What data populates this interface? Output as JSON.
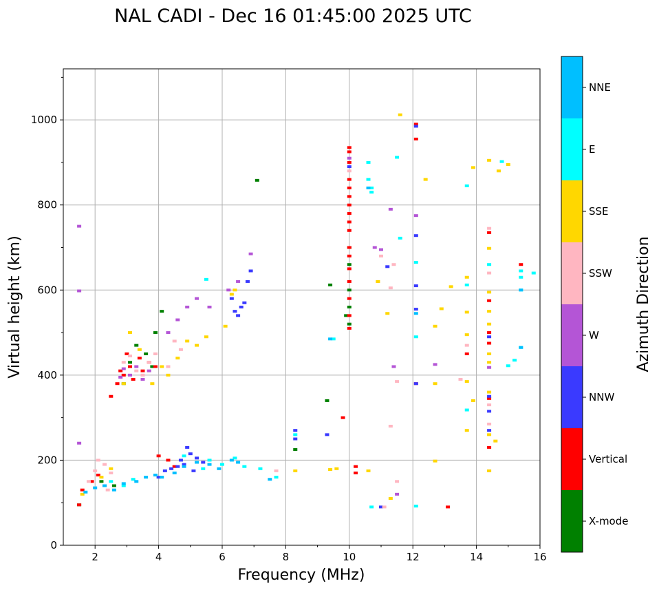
{
  "chart_data": {
    "type": "scatter",
    "title": "NAL CADI - Dec 16 01:45:00 2025 UTC",
    "xlabel": "Frequency (MHz)",
    "ylabel": "Virtual height (km)",
    "xlim": [
      1,
      16
    ],
    "ylim": [
      0,
      1120
    ],
    "xticks": [
      2,
      4,
      6,
      8,
      10,
      12,
      14,
      16
    ],
    "yticks": [
      0,
      200,
      400,
      600,
      800,
      1000
    ],
    "grid": true,
    "colorbar": {
      "label": "Azimuth Direction",
      "categories": [
        {
          "name": "X-mode",
          "color": "#008000"
        },
        {
          "name": "Vertical",
          "color": "#ff0000"
        },
        {
          "name": "NNW",
          "color": "#3a3aff"
        },
        {
          "name": "W",
          "color": "#b455d6"
        },
        {
          "name": "SSW",
          "color": "#ffb6c1"
        },
        {
          "name": "SSE",
          "color": "#ffd700"
        },
        {
          "name": "E",
          "color": "#00ffff"
        },
        {
          "name": "NNE",
          "color": "#00bfff"
        }
      ]
    },
    "series": [
      {
        "name": "X-mode",
        "points": [
          [
            1.5,
            95
          ],
          [
            2.2,
            150
          ],
          [
            2.6,
            140
          ],
          [
            3.1,
            430
          ],
          [
            3.3,
            470
          ],
          [
            3.6,
            450
          ],
          [
            3.9,
            500
          ],
          [
            4.1,
            550
          ],
          [
            3.8,
            420
          ],
          [
            2.9,
            380
          ],
          [
            7.1,
            858
          ],
          [
            8.3,
            225
          ],
          [
            9.3,
            340
          ],
          [
            9.4,
            612
          ],
          [
            10.0,
            520
          ],
          [
            10.0,
            560
          ],
          [
            10.0,
            600
          ],
          [
            10.0,
            660
          ],
          [
            10.0,
            700
          ],
          [
            9.9,
            540
          ]
        ]
      },
      {
        "name": "Vertical",
        "points": [
          [
            1.5,
            95
          ],
          [
            1.6,
            130
          ],
          [
            1.9,
            150
          ],
          [
            2.1,
            165
          ],
          [
            2.3,
            140
          ],
          [
            2.5,
            350
          ],
          [
            2.7,
            380
          ],
          [
            2.8,
            410
          ],
          [
            2.9,
            400
          ],
          [
            3.0,
            450
          ],
          [
            3.1,
            420
          ],
          [
            3.2,
            390
          ],
          [
            3.4,
            440
          ],
          [
            3.5,
            410
          ],
          [
            3.7,
            430
          ],
          [
            3.9,
            420
          ],
          [
            4.0,
            210
          ],
          [
            4.3,
            200
          ],
          [
            4.5,
            185
          ],
          [
            9.8,
            300
          ],
          [
            10.0,
            510
          ],
          [
            10.0,
            540
          ],
          [
            10.0,
            580
          ],
          [
            10.0,
            620
          ],
          [
            10.0,
            650
          ],
          [
            10.0,
            680
          ],
          [
            10.0,
            700
          ],
          [
            10.0,
            740
          ],
          [
            10.0,
            760
          ],
          [
            10.0,
            780
          ],
          [
            10.0,
            800
          ],
          [
            10.0,
            820
          ],
          [
            10.0,
            840
          ],
          [
            10.0,
            860
          ],
          [
            10.0,
            900
          ],
          [
            10.0,
            925
          ],
          [
            10.0,
            935
          ],
          [
            10.2,
            185
          ],
          [
            10.2,
            170
          ],
          [
            12.1,
            380
          ],
          [
            12.1,
            955
          ],
          [
            12.1,
            990
          ],
          [
            13.1,
            90
          ],
          [
            14.4,
            230
          ],
          [
            14.4,
            475
          ],
          [
            14.4,
            500
          ],
          [
            14.4,
            575
          ],
          [
            14.4,
            735
          ],
          [
            14.4,
            345
          ],
          [
            13.7,
            450
          ],
          [
            15.4,
            660
          ]
        ]
      },
      {
        "name": "NNW",
        "points": [
          [
            4.0,
            160
          ],
          [
            4.2,
            175
          ],
          [
            4.4,
            180
          ],
          [
            4.6,
            185
          ],
          [
            4.8,
            190
          ],
          [
            5.0,
            215
          ],
          [
            4.9,
            230
          ],
          [
            5.2,
            205
          ],
          [
            5.4,
            195
          ],
          [
            5.1,
            175
          ],
          [
            4.7,
            200
          ],
          [
            6.4,
            550
          ],
          [
            6.5,
            540
          ],
          [
            6.6,
            560
          ],
          [
            6.7,
            570
          ],
          [
            6.8,
            620
          ],
          [
            6.9,
            645
          ],
          [
            6.3,
            580
          ],
          [
            8.3,
            270
          ],
          [
            8.3,
            250
          ],
          [
            9.3,
            260
          ],
          [
            10.0,
            890
          ],
          [
            11.2,
            655
          ],
          [
            12.1,
            380
          ],
          [
            12.1,
            555
          ],
          [
            12.1,
            610
          ],
          [
            12.1,
            728
          ],
          [
            12.1,
            985
          ],
          [
            14.4,
            270
          ],
          [
            14.4,
            315
          ],
          [
            14.4,
            490
          ],
          [
            14.4,
            350
          ],
          [
            11.0,
            90
          ]
        ]
      },
      {
        "name": "W",
        "points": [
          [
            1.5,
            240
          ],
          [
            1.5,
            750
          ],
          [
            1.5,
            598
          ],
          [
            2.8,
            395
          ],
          [
            2.9,
            415
          ],
          [
            3.1,
            400
          ],
          [
            3.3,
            420
          ],
          [
            3.5,
            390
          ],
          [
            3.7,
            410
          ],
          [
            4.3,
            500
          ],
          [
            4.6,
            530
          ],
          [
            4.9,
            560
          ],
          [
            5.2,
            580
          ],
          [
            5.6,
            560
          ],
          [
            6.2,
            600
          ],
          [
            6.5,
            620
          ],
          [
            6.9,
            685
          ],
          [
            10.0,
            910
          ],
          [
            10.8,
            700
          ],
          [
            11.0,
            695
          ],
          [
            11.3,
            790
          ],
          [
            11.4,
            420
          ],
          [
            11.5,
            120
          ],
          [
            12.1,
            775
          ],
          [
            12.7,
            425
          ],
          [
            14.4,
            418
          ]
        ]
      },
      {
        "name": "SSW",
        "points": [
          [
            1.8,
            150
          ],
          [
            2.0,
            175
          ],
          [
            2.1,
            200
          ],
          [
            2.3,
            190
          ],
          [
            2.5,
            170
          ],
          [
            2.4,
            130
          ],
          [
            2.9,
            430
          ],
          [
            3.1,
            445
          ],
          [
            3.3,
            410
          ],
          [
            3.5,
            400
          ],
          [
            3.7,
            430
          ],
          [
            3.9,
            450
          ],
          [
            4.3,
            420
          ],
          [
            4.5,
            480
          ],
          [
            4.7,
            460
          ],
          [
            7.7,
            175
          ],
          [
            10.0,
            880
          ],
          [
            10.9,
            620
          ],
          [
            11.0,
            680
          ],
          [
            11.3,
            605
          ],
          [
            11.4,
            660
          ],
          [
            11.5,
            385
          ],
          [
            11.3,
            280
          ],
          [
            11.1,
            90
          ],
          [
            11.5,
            150
          ],
          [
            13.7,
            470
          ],
          [
            14.4,
            640
          ],
          [
            14.4,
            330
          ],
          [
            14.4,
            285
          ],
          [
            14.4,
            175
          ],
          [
            14.4,
            745
          ],
          [
            13.5,
            390
          ]
        ]
      },
      {
        "name": "SSE",
        "points": [
          [
            1.6,
            120
          ],
          [
            2.2,
            160
          ],
          [
            2.5,
            180
          ],
          [
            2.9,
            380
          ],
          [
            3.1,
            500
          ],
          [
            3.4,
            460
          ],
          [
            3.8,
            380
          ],
          [
            4.1,
            420
          ],
          [
            4.3,
            400
          ],
          [
            4.6,
            440
          ],
          [
            4.9,
            480
          ],
          [
            5.2,
            470
          ],
          [
            5.5,
            490
          ],
          [
            6.1,
            515
          ],
          [
            6.3,
            590
          ],
          [
            6.4,
            600
          ],
          [
            8.3,
            175
          ],
          [
            9.4,
            178
          ],
          [
            9.6,
            180
          ],
          [
            10.6,
            175
          ],
          [
            10.9,
            620
          ],
          [
            11.2,
            545
          ],
          [
            11.3,
            110
          ],
          [
            11.6,
            1012
          ],
          [
            12.4,
            860
          ],
          [
            12.7,
            380
          ],
          [
            12.7,
            198
          ],
          [
            12.7,
            515
          ],
          [
            12.9,
            556
          ],
          [
            13.2,
            608
          ],
          [
            13.7,
            270
          ],
          [
            13.7,
            385
          ],
          [
            13.7,
            495
          ],
          [
            13.7,
            548
          ],
          [
            13.7,
            630
          ],
          [
            13.9,
            340
          ],
          [
            13.9,
            888
          ],
          [
            14.4,
            175
          ],
          [
            14.4,
            260
          ],
          [
            14.4,
            360
          ],
          [
            14.4,
            430
          ],
          [
            14.4,
            450
          ],
          [
            14.4,
            520
          ],
          [
            14.4,
            550
          ],
          [
            14.4,
            595
          ],
          [
            14.4,
            698
          ],
          [
            14.4,
            905
          ],
          [
            14.6,
            245
          ],
          [
            14.7,
            880
          ],
          [
            15.0,
            895
          ]
        ]
      },
      {
        "name": "E",
        "points": [
          [
            2.5,
            150
          ],
          [
            2.9,
            140
          ],
          [
            3.2,
            155
          ],
          [
            4.8,
            210
          ],
          [
            5.2,
            195
          ],
          [
            5.4,
            180
          ],
          [
            5.6,
            200
          ],
          [
            5.5,
            625
          ],
          [
            6.0,
            190
          ],
          [
            6.4,
            205
          ],
          [
            6.7,
            185
          ],
          [
            7.2,
            180
          ],
          [
            7.7,
            160
          ],
          [
            8.3,
            260
          ],
          [
            9.5,
            485
          ],
          [
            10.6,
            900
          ],
          [
            10.6,
            860
          ],
          [
            10.7,
            830
          ],
          [
            10.7,
            840
          ],
          [
            10.7,
            90
          ],
          [
            11.5,
            912
          ],
          [
            11.6,
            722
          ],
          [
            12.1,
            665
          ],
          [
            12.1,
            490
          ],
          [
            12.1,
            92
          ],
          [
            13.7,
            845
          ],
          [
            13.7,
            612
          ],
          [
            13.7,
            318
          ],
          [
            14.4,
            660
          ],
          [
            14.8,
            902
          ],
          [
            15.2,
            435
          ],
          [
            15.4,
            630
          ],
          [
            15.4,
            645
          ],
          [
            15.8,
            640
          ],
          [
            15.0,
            422
          ],
          [
            15.4,
            465
          ],
          [
            15.4,
            600
          ]
        ]
      },
      {
        "name": "NNE",
        "points": [
          [
            1.7,
            125
          ],
          [
            2.0,
            135
          ],
          [
            2.3,
            140
          ],
          [
            2.6,
            130
          ],
          [
            2.9,
            145
          ],
          [
            3.3,
            150
          ],
          [
            3.6,
            160
          ],
          [
            3.9,
            165
          ],
          [
            4.1,
            160
          ],
          [
            4.5,
            170
          ],
          [
            4.8,
            185
          ],
          [
            5.2,
            195
          ],
          [
            5.6,
            190
          ],
          [
            5.9,
            180
          ],
          [
            6.3,
            200
          ],
          [
            6.5,
            195
          ],
          [
            7.5,
            155
          ],
          [
            9.4,
            485
          ],
          [
            10.6,
            840
          ],
          [
            12.1,
            545
          ],
          [
            15.4,
            600
          ],
          [
            15.4,
            465
          ]
        ]
      }
    ]
  }
}
